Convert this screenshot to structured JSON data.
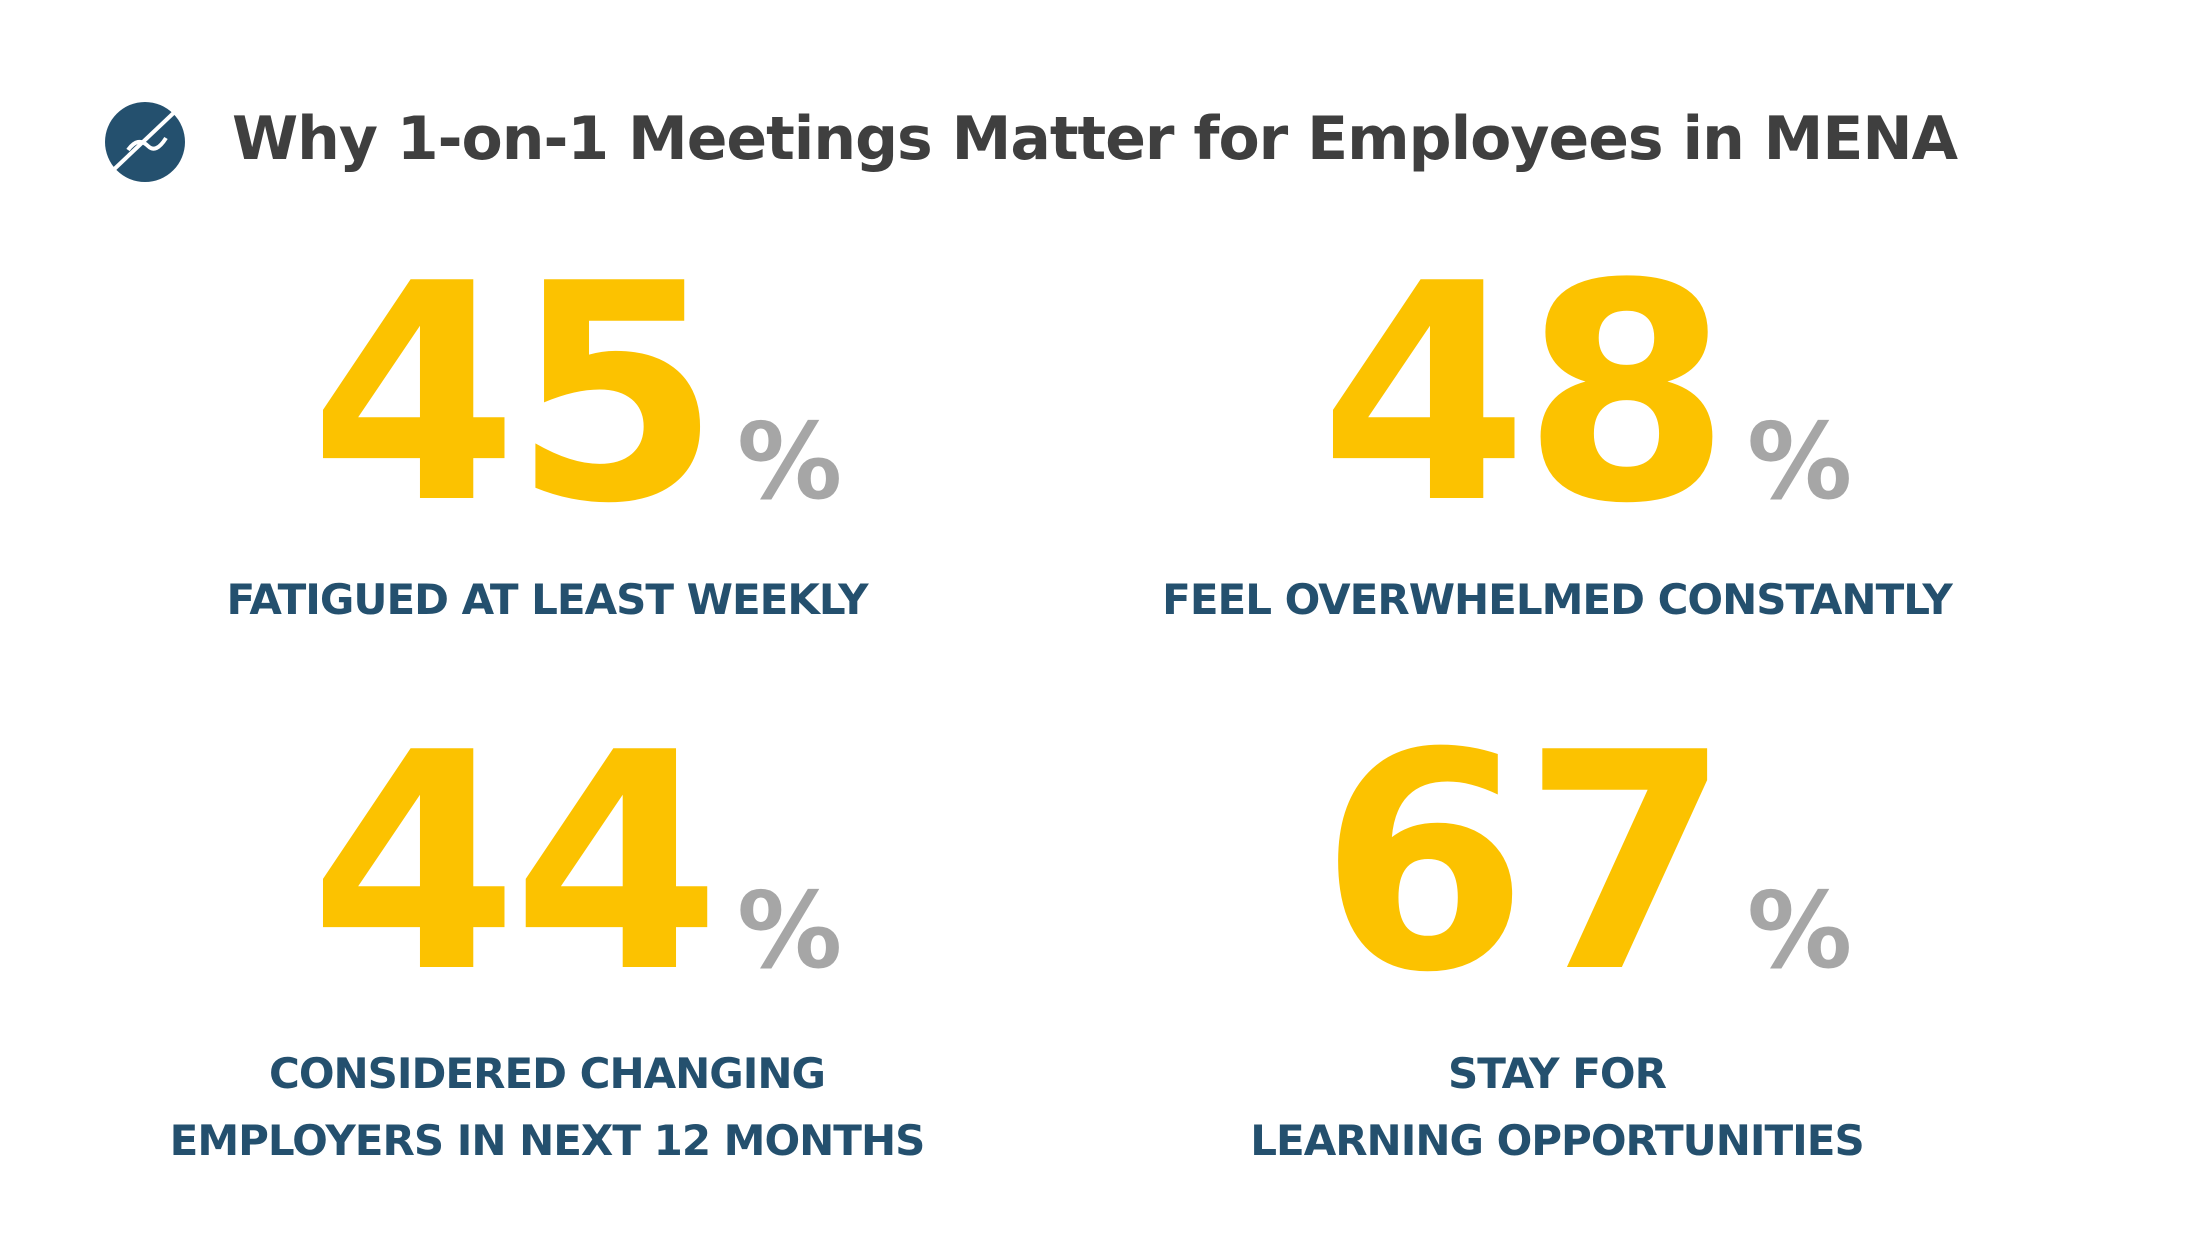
{
  "header": {
    "title": "Why 1-on-1 Meetings Matter for Employees in MENA"
  },
  "stats": [
    {
      "value": 45,
      "unit": "%",
      "label": [
        "FATIGUED AT LEAST WEEKLY"
      ]
    },
    {
      "value": 48,
      "unit": "%",
      "label": [
        "FEEL OVERWHELMED CONSTANTLY"
      ]
    },
    {
      "value": 44,
      "unit": "%",
      "label": [
        "CONSIDERED CHANGING",
        "EMPLOYERS IN NEXT 12 MONTHS"
      ]
    },
    {
      "value": 67,
      "unit": "%",
      "label": [
        "STAY FOR",
        "LEARNING OPPORTUNITIES"
      ]
    }
  ]
}
